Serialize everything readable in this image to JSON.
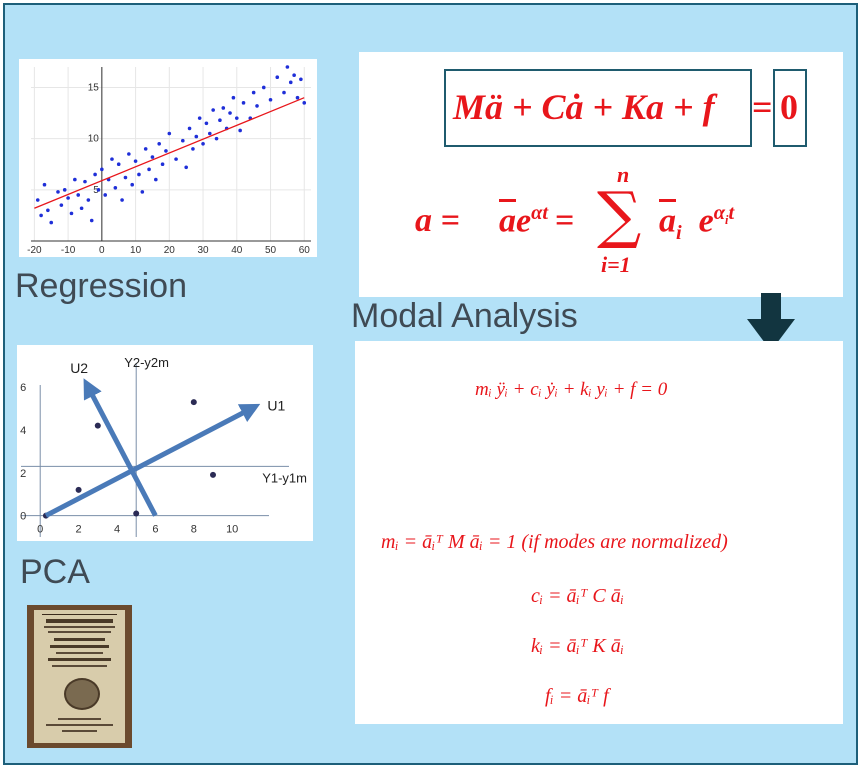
{
  "labels": {
    "regression": "Regression",
    "pca": "PCA",
    "modal_analysis": "Modal Analysis"
  },
  "equations": {
    "motion_lhs": "Mä + Cȧ + Ka + f",
    "motion_eq": "=",
    "motion_rhs": "0",
    "expansion_lhs": "a = ",
    "expansion_mid": " = ",
    "sum_top": "n",
    "sum_bottom": "i=1",
    "modal_eq": "mᵢ ÿᵢ + cᵢ ẏᵢ + kᵢ yᵢ + f = 0",
    "m_i": "mᵢ = āᵢᵀ M āᵢ = 1 (if modes are normalized)",
    "c_i": "cᵢ = āᵢᵀ C āᵢ",
    "k_i": "kᵢ = āᵢᵀ K āᵢ",
    "f_i": "fᵢ = āᵢᵀ f"
  },
  "chart_data": [
    {
      "type": "scatter",
      "name": "regression",
      "x_ticks": [
        "-20",
        "-10",
        "0",
        "10",
        "20",
        "30",
        "40",
        "50",
        "60"
      ],
      "y_ticks": [
        "5",
        "10",
        "15"
      ],
      "xlim": [
        -21,
        62
      ],
      "ylim": [
        0,
        17
      ],
      "trend_line": {
        "x": [
          -20,
          60
        ],
        "y": [
          3.2,
          14
        ]
      },
      "points": [
        [
          -19,
          4
        ],
        [
          -18,
          2.5
        ],
        [
          -17,
          5.5
        ],
        [
          -16,
          3
        ],
        [
          -15,
          1.8
        ],
        [
          -13,
          4.8
        ],
        [
          -12,
          3.5
        ],
        [
          -11,
          5
        ],
        [
          -10,
          4.2
        ],
        [
          -9,
          2.7
        ],
        [
          -8,
          6
        ],
        [
          -7,
          4.5
        ],
        [
          -6,
          3.2
        ],
        [
          -5,
          5.8
        ],
        [
          -4,
          4
        ],
        [
          -3,
          2
        ],
        [
          -2,
          6.5
        ],
        [
          -1,
          5
        ],
        [
          0,
          7
        ],
        [
          1,
          4.5
        ],
        [
          2,
          6
        ],
        [
          3,
          8
        ],
        [
          4,
          5.2
        ],
        [
          5,
          7.5
        ],
        [
          6,
          4
        ],
        [
          7,
          6.2
        ],
        [
          8,
          8.5
        ],
        [
          9,
          5.5
        ],
        [
          10,
          7.8
        ],
        [
          11,
          6.5
        ],
        [
          12,
          4.8
        ],
        [
          13,
          9
        ],
        [
          14,
          7
        ],
        [
          15,
          8.2
        ],
        [
          16,
          6
        ],
        [
          17,
          9.5
        ],
        [
          18,
          7.5
        ],
        [
          19,
          8.8
        ],
        [
          20,
          10.5
        ],
        [
          22,
          8
        ],
        [
          24,
          9.8
        ],
        [
          25,
          7.2
        ],
        [
          26,
          11
        ],
        [
          27,
          9
        ],
        [
          28,
          10.2
        ],
        [
          29,
          12
        ],
        [
          30,
          9.5
        ],
        [
          31,
          11.5
        ],
        [
          32,
          10.5
        ],
        [
          33,
          12.8
        ],
        [
          34,
          10
        ],
        [
          35,
          11.8
        ],
        [
          36,
          13
        ],
        [
          37,
          11
        ],
        [
          38,
          12.5
        ],
        [
          39,
          14
        ],
        [
          40,
          12
        ],
        [
          41,
          10.8
        ],
        [
          42,
          13.5
        ],
        [
          44,
          12
        ],
        [
          45,
          14.5
        ],
        [
          46,
          13.2
        ],
        [
          48,
          15
        ],
        [
          50,
          13.8
        ],
        [
          52,
          16
        ],
        [
          54,
          14.5
        ],
        [
          55,
          17
        ],
        [
          56,
          15.5
        ],
        [
          57,
          16.2
        ],
        [
          58,
          14
        ],
        [
          59,
          15.8
        ],
        [
          60,
          13.5
        ]
      ]
    },
    {
      "type": "scatter",
      "name": "pca",
      "x_ticks": [
        "0",
        "2",
        "4",
        "6",
        "8",
        "10"
      ],
      "y_ticks": [
        "0",
        "2",
        "4",
        "6"
      ],
      "xlim": [
        -1,
        14
      ],
      "ylim": [
        -1,
        7.5
      ],
      "x_axis_label": "Y1-y1m",
      "y_axis_label": "Y2-y2m",
      "mean": [
        5,
        2.3
      ],
      "points": [
        [
          2,
          1.2
        ],
        [
          3,
          4.2
        ],
        [
          5,
          0.1
        ],
        [
          8,
          5.3
        ],
        [
          9,
          1.9
        ],
        [
          0.3,
          0
        ]
      ],
      "vectors": [
        {
          "label": "U1",
          "from": [
            0.3,
            0
          ],
          "to": [
            11,
            5
          ]
        },
        {
          "label": "U2",
          "from": [
            6,
            0
          ],
          "to": [
            2.5,
            6
          ]
        }
      ]
    }
  ]
}
